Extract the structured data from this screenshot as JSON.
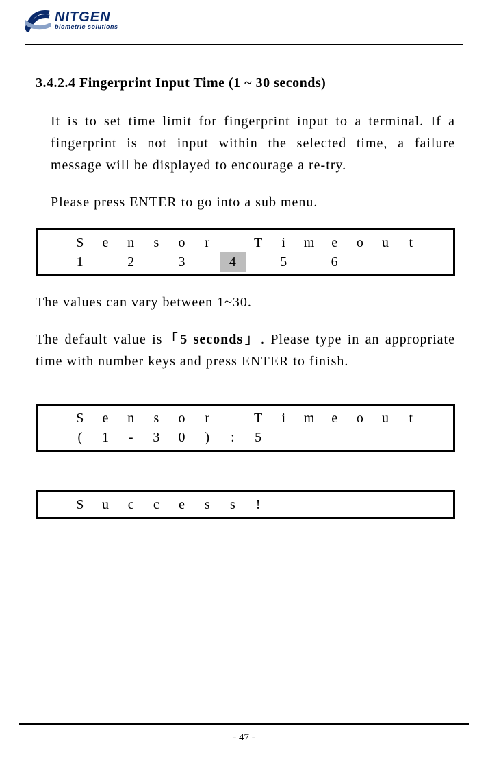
{
  "brand": {
    "name": "NITGEN",
    "tagline": "biometric solutions"
  },
  "section": {
    "heading": "3.4.2.4 Fingerprint Input Time (1 ~ 30 seconds)"
  },
  "paragraphs": {
    "p1": "It is to set time limit for fingerprint input to a terminal. If a fingerprint is not input within the selected time, a failure message will be displayed to encourage a re-try.",
    "p2": "Please press ENTER to go into a sub menu.",
    "p3": "The values can vary between 1~30.",
    "p4a": "The default value is「",
    "p4b": "5 seconds",
    "p4c": "」. Please type in an appropriate time with number keys and press ENTER to finish."
  },
  "lcd1": {
    "row1": [
      "",
      "S",
      "e",
      "n",
      "s",
      "o",
      "r",
      "",
      "T",
      "i",
      "m",
      "e",
      "o",
      "u",
      "t",
      ""
    ],
    "row2": [
      "",
      "1",
      "",
      "2",
      "",
      "3",
      "",
      "4",
      "",
      "5",
      "",
      "6",
      "",
      "",
      "",
      ""
    ],
    "highlight": 7
  },
  "lcd2": {
    "row1": [
      "",
      "S",
      "e",
      "n",
      "s",
      "o",
      "r",
      "",
      "T",
      "i",
      "m",
      "e",
      "o",
      "u",
      "t",
      ""
    ],
    "row2": [
      "",
      "(",
      "1",
      "-",
      "3",
      "0",
      ")",
      ":",
      "5",
      "",
      "",
      "",
      "",
      "",
      "",
      ""
    ]
  },
  "lcd3": {
    "row1": [
      "",
      "S",
      "u",
      "c",
      "c",
      "e",
      "s",
      "s",
      "!",
      "",
      "",
      "",
      "",
      "",
      "",
      ""
    ],
    "row2": [
      "",
      "",
      "",
      "",
      "",
      "",
      "",
      "",
      "",
      "",
      "",
      "",
      "",
      "",
      "",
      ""
    ]
  },
  "page_number": "- 47 -",
  "style": {
    "accent": "#0a2a6b",
    "swoosh": "#8aa2c8"
  }
}
